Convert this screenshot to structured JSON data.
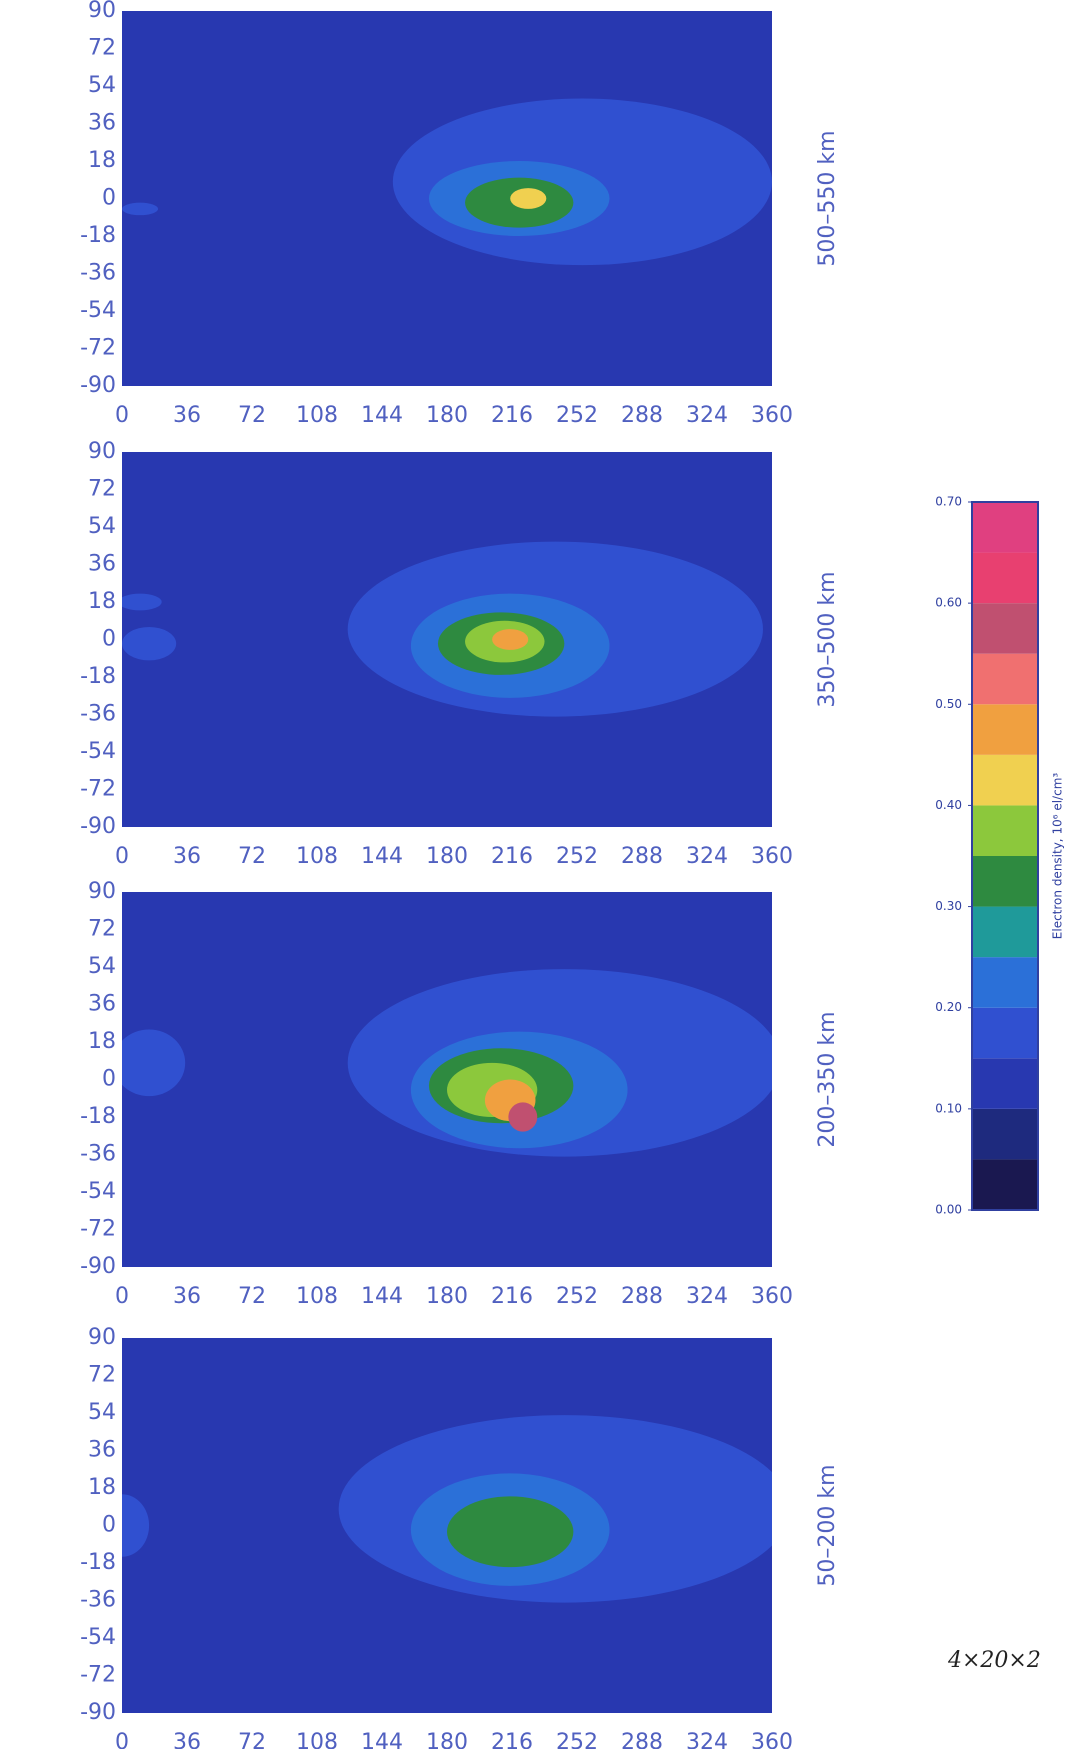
{
  "chart_data": [
    {
      "type": "contour",
      "subtitle": "500–550 km",
      "xlim": [
        0,
        360
      ],
      "ylim": [
        -90,
        90
      ],
      "xticks": [
        0,
        36,
        72,
        108,
        144,
        180,
        216,
        252,
        288,
        324,
        360
      ],
      "yticks": [
        90,
        72,
        54,
        36,
        18,
        0,
        -18,
        -36,
        -54,
        -72,
        -90
      ],
      "background": 0.1,
      "regions": [
        {
          "level": 0.15,
          "lon": 255,
          "lat": 8,
          "rx": 105,
          "ry": 40
        },
        {
          "level": 0.15,
          "lon": 10,
          "lat": -5,
          "rx": 10,
          "ry": 3
        },
        {
          "level": 0.2,
          "lon": 220,
          "lat": 0,
          "rx": 50,
          "ry": 18
        },
        {
          "level": 0.3,
          "lon": 220,
          "lat": -2,
          "rx": 30,
          "ry": 12
        },
        {
          "level": 0.4,
          "lon": 225,
          "lat": 0,
          "rx": 10,
          "ry": 5
        }
      ]
    },
    {
      "type": "contour",
      "subtitle": "350–500 km",
      "xlim": [
        0,
        360
      ],
      "ylim": [
        -90,
        90
      ],
      "xticks": [
        0,
        36,
        72,
        108,
        144,
        180,
        216,
        252,
        288,
        324,
        360
      ],
      "yticks": [
        90,
        72,
        54,
        36,
        18,
        0,
        -18,
        -36,
        -54,
        -72,
        -90
      ],
      "background": 0.1,
      "regions": [
        {
          "level": 0.15,
          "lon": 240,
          "lat": 5,
          "rx": 115,
          "ry": 42
        },
        {
          "level": 0.15,
          "lon": 10,
          "lat": 18,
          "rx": 12,
          "ry": 4
        },
        {
          "level": 0.15,
          "lon": 15,
          "lat": -2,
          "rx": 15,
          "ry": 8
        },
        {
          "level": 0.2,
          "lon": 215,
          "lat": -3,
          "rx": 55,
          "ry": 25
        },
        {
          "level": 0.3,
          "lon": 210,
          "lat": -2,
          "rx": 35,
          "ry": 15
        },
        {
          "level": 0.35,
          "lon": 212,
          "lat": -1,
          "rx": 22,
          "ry": 10
        },
        {
          "level": 0.45,
          "lon": 215,
          "lat": 0,
          "rx": 10,
          "ry": 5
        }
      ]
    },
    {
      "type": "contour",
      "subtitle": "200–350 km",
      "xlim": [
        0,
        360
      ],
      "ylim": [
        -90,
        90
      ],
      "xticks": [
        0,
        36,
        72,
        108,
        144,
        180,
        216,
        252,
        288,
        324,
        360
      ],
      "yticks": [
        90,
        72,
        54,
        36,
        18,
        0,
        -18,
        -36,
        -54,
        -72,
        -90
      ],
      "background": 0.1,
      "regions": [
        {
          "level": 0.15,
          "lon": 245,
          "lat": 8,
          "rx": 120,
          "ry": 45
        },
        {
          "level": 0.15,
          "lon": 15,
          "lat": 8,
          "rx": 20,
          "ry": 16
        },
        {
          "level": 0.2,
          "lon": 220,
          "lat": -5,
          "rx": 60,
          "ry": 28
        },
        {
          "level": 0.3,
          "lon": 210,
          "lat": -3,
          "rx": 40,
          "ry": 18
        },
        {
          "level": 0.35,
          "lon": 205,
          "lat": -5,
          "rx": 25,
          "ry": 13
        },
        {
          "level": 0.45,
          "lon": 215,
          "lat": -10,
          "rx": 14,
          "ry": 10
        },
        {
          "level": 0.55,
          "lon": 222,
          "lat": -18,
          "rx": 8,
          "ry": 7
        }
      ]
    },
    {
      "type": "contour",
      "subtitle": "50–200 km",
      "xlim": [
        0,
        360
      ],
      "ylim": [
        -90,
        90
      ],
      "xticks": [
        0,
        36,
        72,
        108,
        144,
        180,
        216,
        252,
        288,
        324,
        360
      ],
      "yticks": [
        90,
        72,
        54,
        36,
        18,
        0,
        -18,
        -36,
        -54,
        -72,
        -90
      ],
      "background": 0.1,
      "regions": [
        {
          "level": 0.15,
          "lon": 245,
          "lat": 8,
          "rx": 125,
          "ry": 45
        },
        {
          "level": 0.15,
          "lon": 0,
          "lat": 0,
          "rx": 15,
          "ry": 15
        },
        {
          "level": 0.2,
          "lon": 215,
          "lat": -2,
          "rx": 55,
          "ry": 27
        },
        {
          "level": 0.3,
          "lon": 215,
          "lat": -3,
          "rx": 35,
          "ry": 17
        }
      ]
    },
    {
      "type": "colorbar",
      "label": "Electron density, 10⁶ el/cm³",
      "ylim": [
        0,
        0.7
      ],
      "levels": [
        0,
        0.05,
        0.1,
        0.15,
        0.2,
        0.25,
        0.3,
        0.35,
        0.4,
        0.45,
        0.5,
        0.55,
        0.6,
        0.65,
        0.7
      ],
      "colors": [
        "#1a1850",
        "#1e2a7e",
        "#2838b0",
        "#3050d0",
        "#2b70d8",
        "#1f9a9a",
        "#2e8a40",
        "#8cc83c",
        "#f0d050",
        "#f0a040",
        "#f07070",
        "#c05070",
        "#e84070",
        "#e04080"
      ],
      "yticks": [
        {
          "value": 0,
          "label": "0.00"
        },
        {
          "value": 0.1,
          "label": "0.10"
        },
        {
          "value": 0.2,
          "label": "0.20"
        },
        {
          "value": 0.3,
          "label": "0.30"
        },
        {
          "value": 0.4,
          "label": "0.40"
        },
        {
          "value": 0.5,
          "label": "0.50"
        },
        {
          "value": 0.6,
          "label": "0.60"
        },
        {
          "value": 0.7,
          "label": "0.70"
        }
      ]
    }
  ],
  "annotation": "4×20×2"
}
